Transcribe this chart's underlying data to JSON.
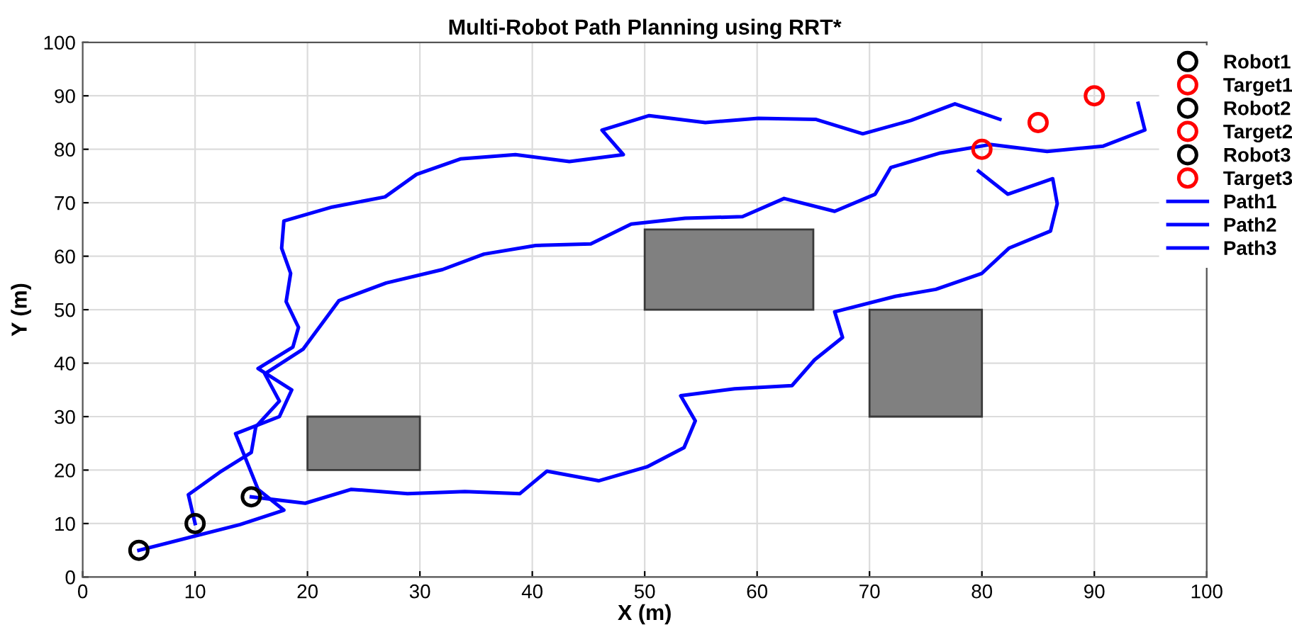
{
  "chart_data": {
    "type": "line",
    "title": "Multi-Robot Path Planning using RRT*",
    "xlabel": "X (m)",
    "ylabel": "Y (m)",
    "xlim": [
      0,
      100
    ],
    "ylim": [
      0,
      100
    ],
    "xticks": [
      0,
      10,
      20,
      30,
      40,
      50,
      60,
      70,
      80,
      90,
      100
    ],
    "yticks": [
      0,
      10,
      20,
      30,
      40,
      50,
      60,
      70,
      80,
      90,
      100
    ],
    "grid": true,
    "legend": "top right",
    "series": [
      {
        "type": "area",
        "color": "#808080",
        "x": [
          20,
          30,
          30,
          20
        ],
        "values": [
          20,
          20,
          30,
          30
        ]
      },
      {
        "type": "area",
        "color": "#808080",
        "x": [
          50,
          65,
          65,
          50
        ],
        "values": [
          50,
          50,
          65,
          65
        ]
      },
      {
        "type": "area",
        "color": "#808080",
        "x": [
          70,
          80,
          80,
          70
        ],
        "values": [
          30,
          30,
          50,
          50
        ]
      },
      {
        "type": "scatter",
        "name": "Robot1",
        "color": "#000000",
        "marker": "circle",
        "x": [
          5
        ],
        "values": [
          5
        ]
      },
      {
        "type": "scatter",
        "name": "Target1",
        "color": "#ff0000",
        "marker": "circle",
        "x": [
          80
        ],
        "values": [
          80
        ]
      },
      {
        "type": "scatter",
        "name": "Robot2",
        "color": "#000000",
        "marker": "circle",
        "x": [
          10
        ],
        "values": [
          10
        ]
      },
      {
        "type": "scatter",
        "name": "Target2",
        "color": "#ff0000",
        "marker": "circle",
        "x": [
          85
        ],
        "values": [
          85
        ]
      },
      {
        "type": "scatter",
        "name": "Robot3",
        "color": "#000000",
        "marker": "circle",
        "x": [
          15
        ],
        "values": [
          15
        ]
      },
      {
        "type": "scatter",
        "name": "Target3",
        "color": "#ff0000",
        "marker": "circle",
        "x": [
          90
        ],
        "values": [
          90
        ]
      },
      {
        "name": "Path1",
        "color": "#0000ff",
        "line_style": "solid",
        "x": [
          5,
          14,
          17.9,
          15.6,
          13.6,
          17.5,
          18.6,
          15.6,
          18.7,
          19.2,
          18.1,
          18.5,
          17.7,
          17.9,
          22.2,
          26.9,
          29.7,
          33.6,
          38.5,
          43.3,
          48.1,
          46.2,
          50.4,
          55.4,
          60.1,
          65.2,
          69.4,
          73.7,
          77.6,
          81.6
        ],
        "values": [
          5,
          9.8,
          12.5,
          16.4,
          26.8,
          30,
          35,
          39,
          43,
          46.7,
          51.5,
          56.8,
          61.5,
          66.6,
          69.2,
          71.1,
          75.3,
          78.2,
          79,
          77.7,
          79,
          83.6,
          86.3,
          85,
          85.8,
          85.6,
          82.9,
          85.4,
          88.5,
          85.6
        ]
      },
      {
        "name": "Path2",
        "color": "#0000ff",
        "line_style": "solid",
        "x": [
          10,
          9.4,
          12.2,
          15,
          15.4,
          17.5,
          16.2,
          19.6,
          22.8,
          27,
          32,
          35.7,
          40.3,
          45.2,
          48.8,
          53.6,
          58.7,
          62.4,
          66.9,
          70.5,
          71.9,
          76.3,
          80.8,
          85.8,
          90.8,
          94.5,
          93.9
        ],
        "values": [
          10,
          15.4,
          19.6,
          23.3,
          28.1,
          32.9,
          38,
          42.6,
          51.7,
          55,
          57.5,
          60.4,
          62,
          62.3,
          66,
          67.1,
          67.4,
          70.8,
          68.4,
          71.6,
          76.6,
          79.3,
          80.9,
          79.6,
          80.6,
          83.6,
          88.6
        ]
      },
      {
        "name": "Path3",
        "color": "#0000ff",
        "line_style": "solid",
        "x": [
          15,
          19.8,
          23.9,
          28.9,
          34,
          38.9,
          41.3,
          45.9,
          50.2,
          53.5,
          54.5,
          53.2,
          58,
          63.1,
          65.1,
          67.6,
          66.9,
          72.3,
          75.9,
          80,
          82.4,
          86.1,
          86.7,
          86.3,
          82.3,
          79.7
        ],
        "values": [
          15,
          13.8,
          16.4,
          15.6,
          16,
          15.6,
          19.8,
          18,
          20.6,
          24.2,
          29.2,
          33.9,
          35.2,
          35.8,
          40.6,
          44.8,
          49.6,
          52.5,
          53.8,
          56.8,
          61.5,
          64.7,
          69.8,
          74.5,
          71.6,
          75.9
        ]
      }
    ]
  }
}
